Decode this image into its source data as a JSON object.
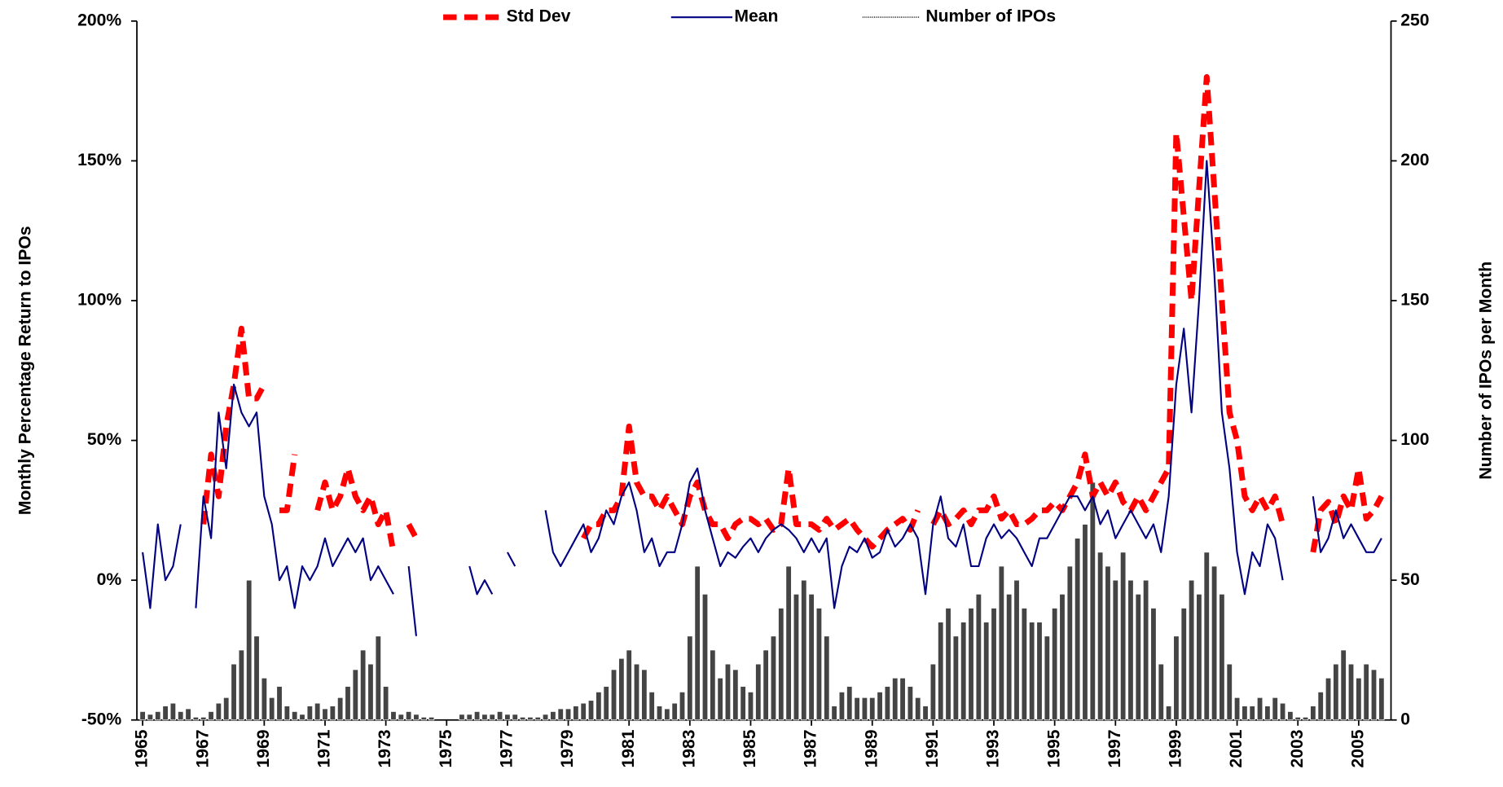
{
  "chart_data": {
    "type": "line",
    "x_label": null,
    "y_label": "Monthly Percentage Return to IPOs",
    "y2_label": "Number of IPOs per Month",
    "xlim": [
      1965,
      2006
    ],
    "xticks": [
      1965,
      1967,
      1969,
      1971,
      1973,
      1975,
      1977,
      1979,
      1981,
      1983,
      1985,
      1987,
      1989,
      1991,
      1993,
      1995,
      1997,
      1999,
      2001,
      2003,
      2005
    ],
    "ylim": [
      -50,
      200
    ],
    "yticks": [
      {
        "value": -50,
        "label": "-50%"
      },
      {
        "value": 0,
        "label": "0%"
      },
      {
        "value": 50,
        "label": "50%"
      },
      {
        "value": 100,
        "label": "100%"
      },
      {
        "value": 150,
        "label": "150%"
      },
      {
        "value": 200,
        "label": "200%"
      }
    ],
    "y2lim": [
      0,
      250
    ],
    "y2ticks": [
      0,
      50,
      100,
      150,
      200,
      250
    ],
    "legend": "top",
    "x": [
      1965,
      1965.25,
      1965.5,
      1965.75,
      1966,
      1966.25,
      1966.5,
      1966.75,
      1967,
      1967.25,
      1967.5,
      1967.75,
      1968,
      1968.25,
      1968.5,
      1968.75,
      1969,
      1969.25,
      1969.5,
      1969.75,
      1970,
      1970.25,
      1970.5,
      1970.75,
      1971,
      1971.25,
      1971.5,
      1971.75,
      1972,
      1972.25,
      1972.5,
      1972.75,
      1973,
      1973.25,
      1973.5,
      1973.75,
      1974,
      1974.25,
      1974.5,
      1974.75,
      1975,
      1975.25,
      1975.5,
      1975.75,
      1976,
      1976.25,
      1976.5,
      1976.75,
      1977,
      1977.25,
      1977.5,
      1977.75,
      1978,
      1978.25,
      1978.5,
      1978.75,
      1979,
      1979.25,
      1979.5,
      1979.75,
      1980,
      1980.25,
      1980.5,
      1980.75,
      1981,
      1981.25,
      1981.5,
      1981.75,
      1982,
      1982.25,
      1982.5,
      1982.75,
      1983,
      1983.25,
      1983.5,
      1983.75,
      1984,
      1984.25,
      1984.5,
      1984.75,
      1985,
      1985.25,
      1985.5,
      1985.75,
      1986,
      1986.25,
      1986.5,
      1986.75,
      1987,
      1987.25,
      1987.5,
      1987.75,
      1988,
      1988.25,
      1988.5,
      1988.75,
      1989,
      1989.25,
      1989.5,
      1989.75,
      1990,
      1990.25,
      1990.5,
      1990.75,
      1991,
      1991.25,
      1991.5,
      1991.75,
      1992,
      1992.25,
      1992.5,
      1992.75,
      1993,
      1993.25,
      1993.5,
      1993.75,
      1994,
      1994.25,
      1994.5,
      1994.75,
      1995,
      1995.25,
      1995.5,
      1995.75,
      1996,
      1996.25,
      1996.5,
      1996.75,
      1997,
      1997.25,
      1997.5,
      1997.75,
      1998,
      1998.25,
      1998.5,
      1998.75,
      1999,
      1999.25,
      1999.5,
      1999.75,
      2000,
      2000.25,
      2000.5,
      2000.75,
      2001,
      2001.25,
      2001.5,
      2001.75,
      2002,
      2002.25,
      2002.5,
      2002.75,
      2003,
      2003.25,
      2003.5,
      2003.75,
      2004,
      2004.25,
      2004.5,
      2004.75,
      2005,
      2005.25,
      2005.5,
      2005.75
    ],
    "series": [
      {
        "name": "Std Dev",
        "type": "line",
        "color": "#ff0000",
        "dashed": true,
        "values": [
          null,
          null,
          null,
          22,
          null,
          null,
          null,
          null,
          20,
          45,
          30,
          55,
          70,
          90,
          65,
          65,
          70,
          null,
          25,
          25,
          45,
          null,
          null,
          25,
          35,
          25,
          30,
          40,
          30,
          25,
          30,
          20,
          25,
          10,
          null,
          20,
          15,
          null,
          null,
          null,
          null,
          null,
          null,
          null,
          null,
          null,
          null,
          null,
          null,
          null,
          null,
          null,
          null,
          null,
          null,
          null,
          null,
          null,
          15,
          20,
          20,
          25,
          25,
          30,
          55,
          35,
          30,
          30,
          25,
          30,
          25,
          20,
          30,
          35,
          25,
          20,
          20,
          15,
          20,
          22,
          22,
          20,
          22,
          18,
          20,
          40,
          20,
          20,
          20,
          18,
          22,
          18,
          20,
          22,
          18,
          15,
          12,
          15,
          18,
          20,
          22,
          18,
          25,
          null,
          20,
          25,
          20,
          22,
          25,
          20,
          25,
          25,
          30,
          22,
          25,
          20,
          20,
          22,
          25,
          25,
          28,
          25,
          30,
          35,
          45,
          30,
          35,
          30,
          35,
          28,
          25,
          30,
          25,
          30,
          35,
          40,
          160,
          130,
          100,
          140,
          180,
          140,
          100,
          60,
          50,
          30,
          25,
          30,
          25,
          30,
          20,
          null,
          20,
          null,
          10,
          25,
          28,
          20,
          30,
          25,
          40,
          22,
          25,
          30
        ]
      },
      {
        "name": "Mean",
        "type": "line",
        "color": "#000080",
        "values": [
          10,
          -10,
          20,
          0,
          5,
          20,
          null,
          -10,
          30,
          15,
          60,
          40,
          70,
          60,
          55,
          60,
          30,
          20,
          0,
          5,
          -10,
          5,
          0,
          5,
          15,
          5,
          10,
          15,
          10,
          15,
          0,
          5,
          0,
          -5,
          null,
          5,
          -20,
          null,
          null,
          null,
          null,
          null,
          null,
          5,
          -5,
          0,
          -5,
          null,
          10,
          5,
          null,
          null,
          null,
          25,
          10,
          5,
          10,
          15,
          20,
          10,
          15,
          25,
          20,
          30,
          35,
          25,
          10,
          15,
          5,
          10,
          10,
          20,
          35,
          40,
          25,
          15,
          5,
          10,
          8,
          12,
          15,
          10,
          15,
          18,
          20,
          18,
          15,
          10,
          15,
          10,
          15,
          -10,
          5,
          12,
          10,
          15,
          8,
          10,
          18,
          12,
          15,
          20,
          15,
          -5,
          20,
          30,
          15,
          12,
          20,
          5,
          5,
          15,
          20,
          15,
          18,
          15,
          10,
          5,
          15,
          15,
          20,
          25,
          30,
          30,
          25,
          30,
          20,
          25,
          15,
          20,
          25,
          20,
          15,
          20,
          10,
          30,
          70,
          90,
          60,
          100,
          150,
          110,
          60,
          40,
          10,
          -5,
          10,
          5,
          20,
          15,
          0,
          null,
          5,
          null,
          30,
          10,
          15,
          25,
          15,
          20,
          15,
          10,
          10,
          15
        ]
      },
      {
        "name": "Number of IPOs",
        "type": "bar",
        "axis": "y2",
        "color": "#444444",
        "values": [
          3,
          2,
          3,
          5,
          6,
          3,
          4,
          1,
          1,
          3,
          6,
          8,
          20,
          25,
          50,
          30,
          15,
          8,
          12,
          5,
          3,
          2,
          5,
          6,
          4,
          5,
          8,
          12,
          18,
          25,
          20,
          30,
          12,
          3,
          2,
          3,
          2,
          1,
          1,
          0,
          0,
          0,
          2,
          2,
          3,
          2,
          2,
          3,
          2,
          2,
          1,
          1,
          1,
          2,
          3,
          4,
          4,
          5,
          6,
          7,
          10,
          12,
          18,
          22,
          25,
          20,
          18,
          10,
          5,
          4,
          6,
          10,
          30,
          55,
          45,
          25,
          15,
          20,
          18,
          12,
          10,
          20,
          25,
          30,
          40,
          55,
          45,
          50,
          45,
          40,
          30,
          5,
          10,
          12,
          8,
          8,
          8,
          10,
          12,
          15,
          15,
          12,
          8,
          5,
          20,
          35,
          40,
          30,
          35,
          40,
          45,
          35,
          40,
          55,
          45,
          50,
          40,
          35,
          35,
          30,
          40,
          45,
          55,
          65,
          70,
          85,
          60,
          55,
          50,
          60,
          50,
          45,
          50,
          40,
          20,
          5,
          30,
          40,
          50,
          45,
          60,
          55,
          45,
          20,
          8,
          5,
          5,
          8,
          5,
          8,
          6,
          3,
          1,
          1,
          5,
          10,
          15,
          20,
          25,
          20,
          15,
          20,
          18,
          15
        ]
      }
    ]
  }
}
